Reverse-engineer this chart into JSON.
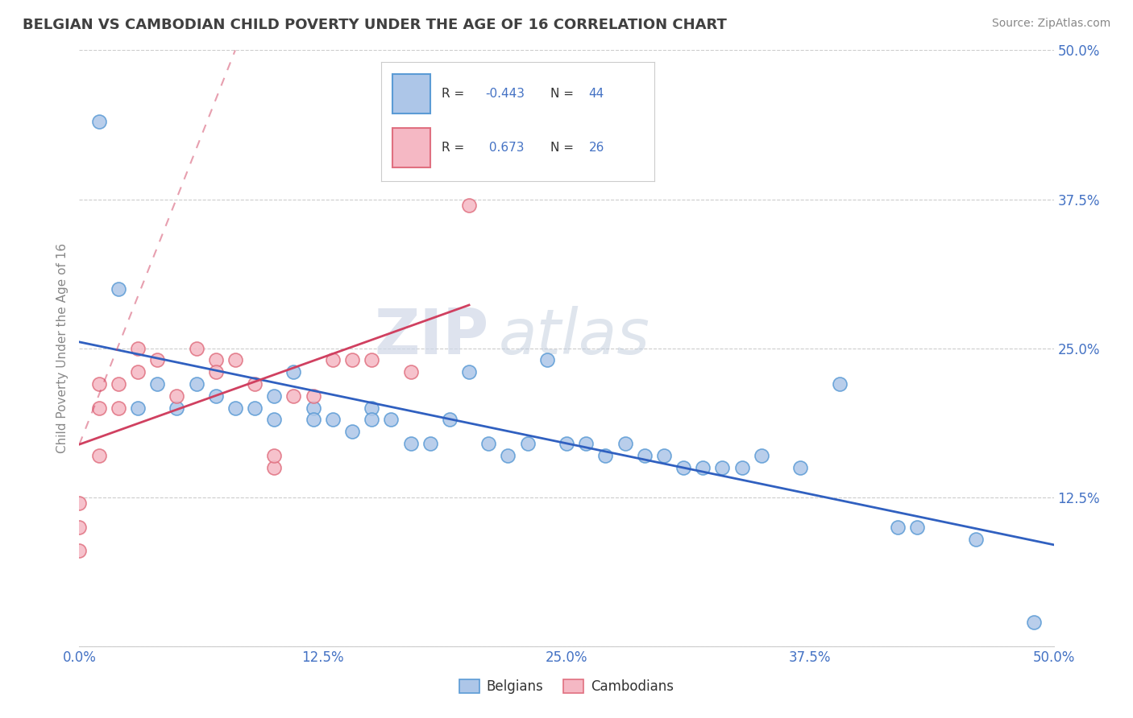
{
  "title": "BELGIAN VS CAMBODIAN CHILD POVERTY UNDER THE AGE OF 16 CORRELATION CHART",
  "source": "Source: ZipAtlas.com",
  "ylabel": "Child Poverty Under the Age of 16",
  "xlim": [
    0.0,
    0.5
  ],
  "ylim": [
    0.0,
    0.5
  ],
  "xtick_vals": [
    0.0,
    0.125,
    0.25,
    0.375,
    0.5
  ],
  "xtick_labels": [
    "0.0%",
    "12.5%",
    "25.0%",
    "37.5%",
    "50.0%"
  ],
  "ytick_vals": [
    0.0,
    0.125,
    0.25,
    0.375,
    0.5
  ],
  "ytick_labels": [
    "",
    "12.5%",
    "25.0%",
    "37.5%",
    "50.0%"
  ],
  "belgian_color": "#adc6e8",
  "cambodian_color": "#f5b8c4",
  "belgian_edge": "#5b9bd5",
  "cambodian_edge": "#e07080",
  "trend_belgian_color": "#3060c0",
  "trend_cambodian_color": "#d04060",
  "R_belgian": -0.443,
  "N_belgian": 44,
  "R_cambodian": 0.673,
  "N_cambodian": 26,
  "watermark_zip": "ZIP",
  "watermark_atlas": "atlas",
  "belgians_x": [
    0.01,
    0.02,
    0.03,
    0.04,
    0.05,
    0.06,
    0.07,
    0.08,
    0.09,
    0.1,
    0.1,
    0.11,
    0.12,
    0.12,
    0.13,
    0.14,
    0.15,
    0.15,
    0.16,
    0.17,
    0.18,
    0.19,
    0.2,
    0.21,
    0.22,
    0.23,
    0.24,
    0.25,
    0.26,
    0.27,
    0.28,
    0.29,
    0.3,
    0.31,
    0.32,
    0.33,
    0.34,
    0.35,
    0.37,
    0.39,
    0.42,
    0.43,
    0.46,
    0.49
  ],
  "belgians_y": [
    0.44,
    0.3,
    0.2,
    0.22,
    0.2,
    0.22,
    0.21,
    0.2,
    0.2,
    0.21,
    0.19,
    0.23,
    0.2,
    0.19,
    0.19,
    0.18,
    0.2,
    0.19,
    0.19,
    0.17,
    0.17,
    0.19,
    0.23,
    0.17,
    0.16,
    0.17,
    0.24,
    0.17,
    0.17,
    0.16,
    0.17,
    0.16,
    0.16,
    0.15,
    0.15,
    0.15,
    0.15,
    0.16,
    0.15,
    0.22,
    0.1,
    0.1,
    0.09,
    0.02
  ],
  "cambodians_x": [
    0.0,
    0.0,
    0.0,
    0.01,
    0.01,
    0.01,
    0.02,
    0.02,
    0.03,
    0.03,
    0.04,
    0.05,
    0.06,
    0.07,
    0.07,
    0.08,
    0.09,
    0.1,
    0.1,
    0.11,
    0.12,
    0.13,
    0.14,
    0.15,
    0.17,
    0.2
  ],
  "cambodians_y": [
    0.12,
    0.1,
    0.08,
    0.22,
    0.2,
    0.16,
    0.22,
    0.2,
    0.25,
    0.23,
    0.24,
    0.21,
    0.25,
    0.24,
    0.23,
    0.24,
    0.22,
    0.15,
    0.16,
    0.21,
    0.21,
    0.24,
    0.24,
    0.24,
    0.23,
    0.37
  ]
}
